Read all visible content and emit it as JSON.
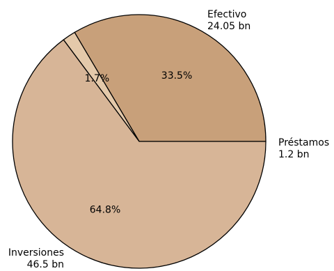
{
  "chart_data": {
    "type": "pie",
    "title": "",
    "slices": [
      {
        "label": "Efectivo",
        "value_label": "24.05 bn",
        "value": 24.05,
        "pct_label": "33.5%",
        "color": "#c8a07a"
      },
      {
        "label": "Préstamos",
        "value_label": "1.2 bn",
        "value": 1.2,
        "pct_label": "1.7%",
        "color": "#e4c9aa"
      },
      {
        "label": "Inversiones",
        "value_label": "46.5 bn",
        "value": 46.5,
        "pct_label": "64.8%",
        "color": "#d7b597"
      }
    ]
  }
}
